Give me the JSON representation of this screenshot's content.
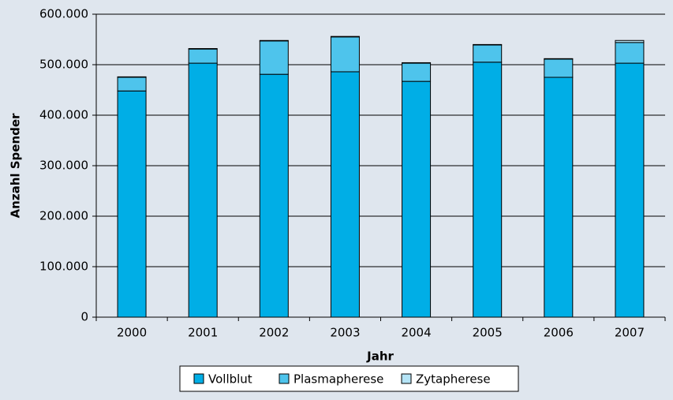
{
  "chart_data": {
    "type": "stacked-bar",
    "x_label": "Jahr",
    "y_label": "Anzahl Spender",
    "categories": [
      "2000",
      "2001",
      "2002",
      "2003",
      "2004",
      "2005",
      "2006",
      "2007"
    ],
    "series": [
      {
        "name": "Vollblut",
        "color": "#00aee6",
        "values": [
          448000,
          503000,
          481000,
          486000,
          467000,
          505000,
          475000,
          503000
        ]
      },
      {
        "name": "Plasmapherese",
        "color": "#4ec4ec",
        "values": [
          27000,
          28000,
          66000,
          69000,
          36000,
          34000,
          36000,
          41000
        ]
      },
      {
        "name": "Zytapherese",
        "color": "#b5e4f6",
        "values": [
          1000,
          1000,
          1000,
          1000,
          1000,
          1000,
          1000,
          4000
        ]
      }
    ],
    "ylim": [
      0,
      600000
    ],
    "yticks": [
      0,
      {
        "value": 100000,
        "label": "100.000"
      },
      {
        "value": 200000,
        "label": "200.000"
      },
      {
        "value": 300000,
        "label": "300.000"
      },
      {
        "value": 400000,
        "label": "400.000"
      },
      {
        "value": 500000,
        "label": "500.000"
      },
      {
        "value": 600000,
        "label": "600.000"
      }
    ],
    "grid": true,
    "legend": "bottom"
  }
}
